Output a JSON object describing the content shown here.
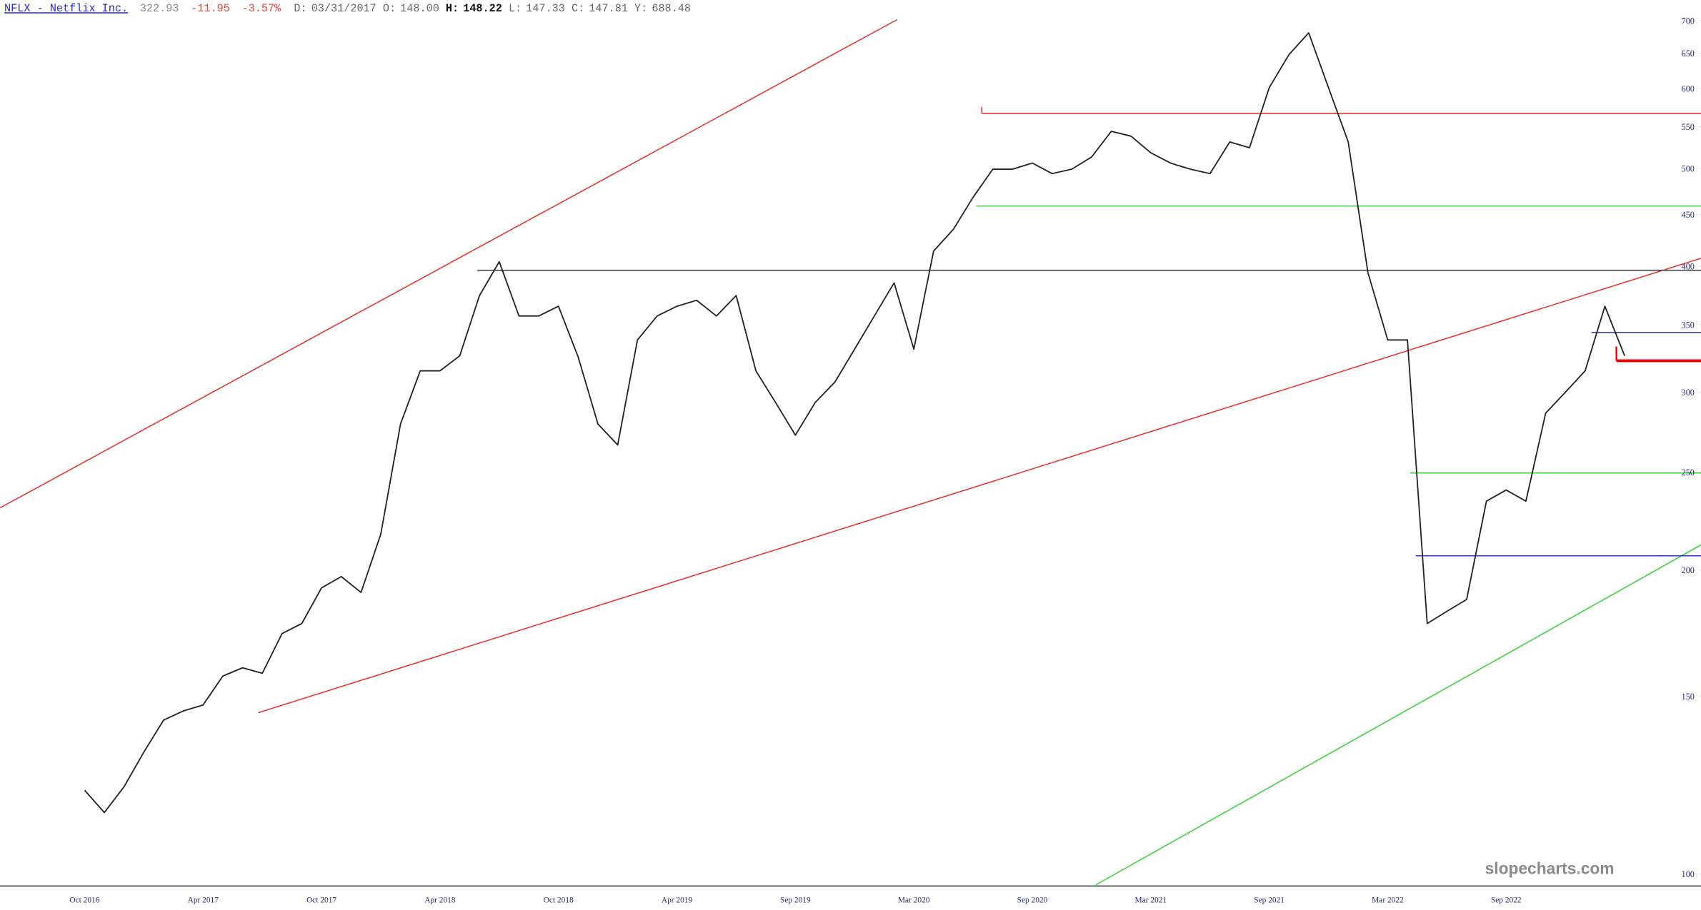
{
  "header": {
    "symbol": "NFLX - Netflix Inc.",
    "last": "322.93",
    "change": "-11.95",
    "change_pct": "-3.57%",
    "details": [
      {
        "label": "D:",
        "value": "03/31/2017"
      },
      {
        "label": "O:",
        "value": "148.00"
      },
      {
        "label": "H:",
        "value": "148.22"
      },
      {
        "label": "L:",
        "value": "147.33"
      },
      {
        "label": "C:",
        "value": "147.81"
      },
      {
        "label": "Y:",
        "value": "688.48"
      }
    ]
  },
  "chart_data": {
    "type": "line",
    "watermark": "slopecharts.com",
    "log_scale": true,
    "categories": [
      "Oct 2016",
      null,
      null,
      null,
      null,
      null,
      "Apr 2017",
      null,
      null,
      null,
      null,
      null,
      "Oct 2017",
      null,
      null,
      null,
      null,
      null,
      "Apr 2018",
      null,
      null,
      null,
      null,
      null,
      "Oct 2018",
      null,
      null,
      null,
      null,
      null,
      "Apr 2019",
      null,
      null,
      null,
      null,
      null,
      "Sep 2019",
      null,
      null,
      null,
      null,
      null,
      "Mar 2020",
      null,
      null,
      null,
      null,
      null,
      "Sep 2020",
      null,
      null,
      null,
      null,
      null,
      "Mar 2021",
      null,
      null,
      null,
      null,
      null,
      "Sep 2021",
      null,
      null,
      null,
      null,
      null,
      "Mar 2022",
      null,
      null,
      null,
      null,
      null,
      "Sep 2022",
      null,
      null,
      null,
      null,
      null,
      null
    ],
    "series": [
      {
        "name": "NFLX",
        "color": "#222222",
        "values": [
          121,
          115,
          122,
          132,
          142,
          145,
          147,
          157,
          160,
          158,
          173,
          177,
          192,
          197,
          190,
          217,
          279,
          315,
          315,
          326,
          374,
          404,
          357,
          357,
          365,
          325,
          279,
          266,
          338,
          357,
          365,
          370,
          357,
          374,
          315,
          293,
          272,
          293,
          307,
          331,
          357,
          385,
          331,
          414,
          435,
          468,
          499,
          499,
          506,
          494,
          499,
          513,
          544,
          538,
          518,
          506,
          499,
          494,
          531,
          524,
          601,
          648,
          681,
          601,
          531,
          394,
          338,
          338,
          177,
          182,
          187,
          234,
          240,
          234,
          286,
          300,
          315,
          365,
          326
        ]
      }
    ],
    "ylim": [
      97.5,
      734
    ],
    "yticks": [
      100,
      150,
      200,
      250,
      300,
      350,
      400,
      450,
      500,
      550,
      600,
      650,
      700
    ],
    "grid": false
  }
}
